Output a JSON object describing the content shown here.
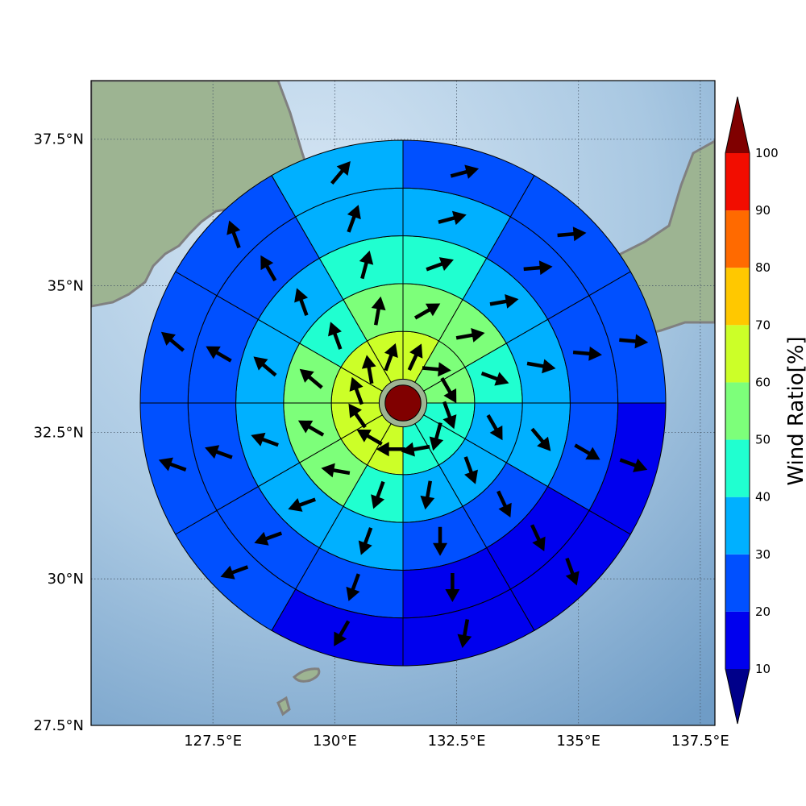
{
  "map": {
    "lon_range": [
      125.0,
      137.8
    ],
    "lat_range": [
      27.5,
      38.5
    ],
    "lon_ticks": [
      {
        "value": 127.5,
        "label": "127.5°E"
      },
      {
        "value": 130.0,
        "label": "130°E"
      },
      {
        "value": 132.5,
        "label": "132.5°E"
      },
      {
        "value": 135.0,
        "label": "135°E"
      },
      {
        "value": 137.5,
        "label": "137.5°E"
      }
    ],
    "lat_ticks": [
      {
        "value": 27.5,
        "label": "27.5°N"
      },
      {
        "value": 30.0,
        "label": "30°N"
      },
      {
        "value": 32.5,
        "label": "32.5°N"
      },
      {
        "value": 35.0,
        "label": "35°N"
      },
      {
        "value": 37.5,
        "label": "37.5°N"
      }
    ],
    "colors": {
      "ocean": "#9fbfdc",
      "land": "#8fb08a",
      "coastline": "#808080",
      "grid": "#4a5a6a"
    }
  },
  "colorbar": {
    "title": "Wind Ratio[%]",
    "levels": [
      10,
      20,
      30,
      40,
      50,
      60,
      70,
      80,
      90,
      100
    ],
    "bands": [
      {
        "min": 10,
        "max": 20,
        "color": "#0000ee"
      },
      {
        "min": 20,
        "max": 30,
        "color": "#0050ff"
      },
      {
        "min": 30,
        "max": 40,
        "color": "#00b0ff"
      },
      {
        "min": 40,
        "max": 50,
        "color": "#20ffd0"
      },
      {
        "min": 50,
        "max": 60,
        "color": "#7dff7a"
      },
      {
        "min": 60,
        "max": 70,
        "color": "#ccff28"
      },
      {
        "min": 70,
        "max": 80,
        "color": "#ffc800"
      },
      {
        "min": 80,
        "max": 90,
        "color": "#ff6a00"
      },
      {
        "min": 90,
        "max": 100,
        "color": "#f20d00"
      }
    ],
    "under_color": "#00008a",
    "over_color": "#800000"
  },
  "chart_data": {
    "type": "heatmap",
    "geometry": "polar-sector-grid",
    "center": {
      "lon": 131.4,
      "lat": 33.0
    },
    "rings": [
      {
        "inner_km": 0,
        "outer_km": 50
      },
      {
        "inner_km": 50,
        "outer_km": 150
      },
      {
        "inner_km": 150,
        "outer_km": 250
      },
      {
        "inner_km": 250,
        "outer_km": 350
      },
      {
        "inner_km": 350,
        "outer_km": 450
      },
      {
        "inner_km": 450,
        "outer_km": 550
      }
    ],
    "sectors": [
      "N-NNE",
      "NNE-ENE",
      "ENE-E",
      "E-ESE",
      "ESE-SSE",
      "SSE-S",
      "S-SSW",
      "SSW-WSW",
      "WSW-W",
      "W-WNW",
      "WNW-NNW",
      "NNW-N"
    ],
    "center_value": 100,
    "ratio_percent": [
      [
        65,
        55,
        50,
        40,
        40,
        40,
        65,
        65,
        65,
        60,
        65,
        65
      ],
      [
        55,
        50,
        40,
        30,
        30,
        30,
        45,
        55,
        55,
        55,
        45,
        55
      ],
      [
        45,
        35,
        30,
        30,
        20,
        20,
        30,
        35,
        35,
        35,
        35,
        45
      ],
      [
        30,
        25,
        25,
        20,
        15,
        15,
        25,
        25,
        25,
        25,
        25,
        30
      ],
      [
        20,
        20,
        20,
        15,
        15,
        15,
        15,
        25,
        25,
        25,
        25,
        30
      ],
      [
        15,
        20,
        25,
        15,
        15,
        15,
        15,
        25,
        25,
        25,
        25,
        35
      ]
    ],
    "vector_direction_deg": [
      [
        25,
        95,
        150,
        160,
        195,
        260,
        270,
        300,
        325,
        340,
        350,
        20
      ],
      [
        60,
        80,
        110,
        150,
        160,
        190,
        200,
        280,
        300,
        310,
        340,
        10
      ],
      [
        70,
        80,
        100,
        140,
        155,
        180,
        200,
        250,
        290,
        310,
        340,
        15
      ],
      [
        75,
        85,
        95,
        120,
        155,
        180,
        200,
        250,
        290,
        300,
        330,
        20
      ],
      [
        75,
        85,
        95,
        110,
        160,
        190,
        210,
        250,
        290,
        310,
        340,
        40
      ],
      [
        75,
        80,
        95,
        110,
        150,
        195,
        210,
        260,
        300,
        330,
        345,
        40
      ]
    ]
  }
}
